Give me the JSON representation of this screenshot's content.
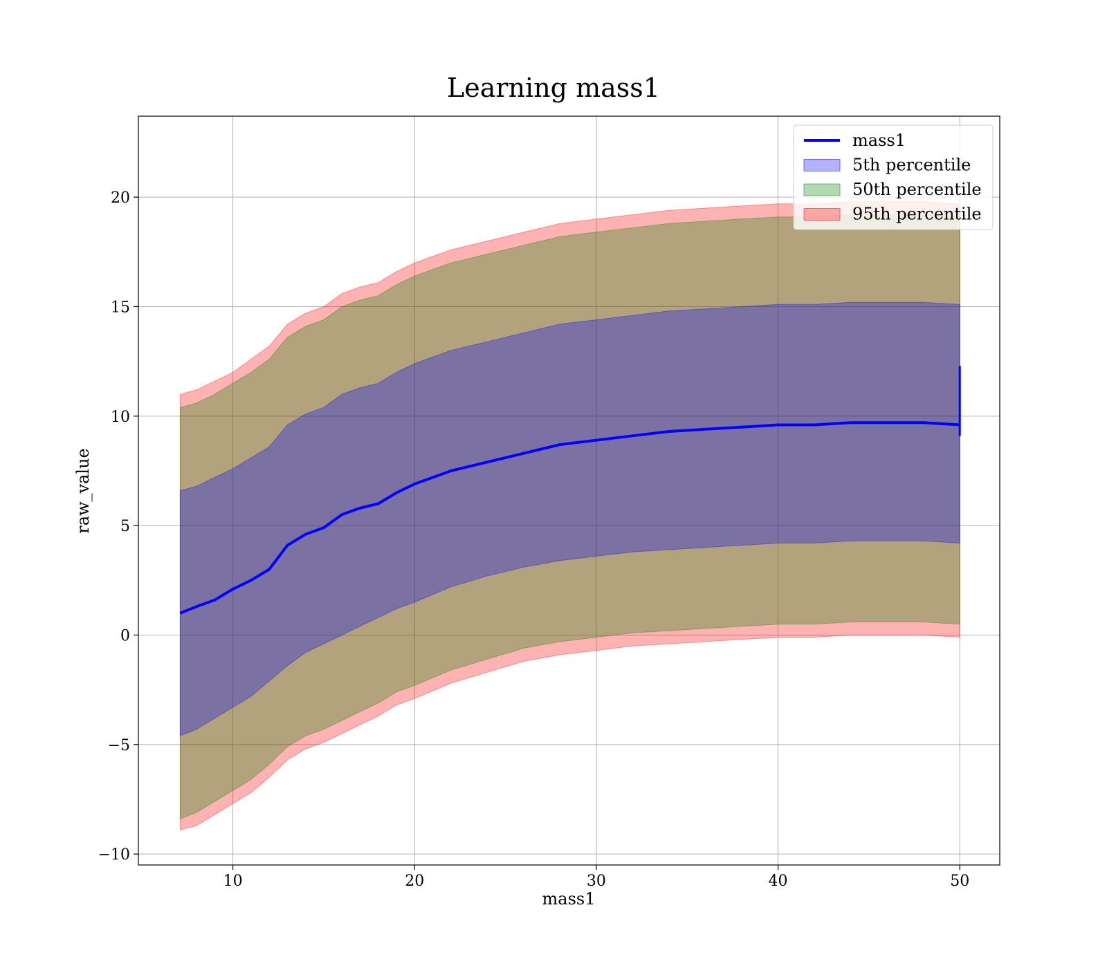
{
  "chart_data": {
    "type": "area",
    "title": "Learning mass1",
    "xlabel": "mass1",
    "ylabel": "raw_value",
    "xlim": [
      4.8,
      52.2
    ],
    "ylim": [
      -10.5,
      23.7
    ],
    "xticks": [
      10,
      20,
      30,
      40,
      50
    ],
    "yticks": [
      -10,
      -5,
      0,
      5,
      10,
      15,
      20
    ],
    "grid": true,
    "legend_position": "top-right",
    "x": [
      7.1,
      8,
      9,
      10,
      11,
      12,
      13,
      14,
      15,
      16,
      17,
      18,
      19,
      20,
      22,
      24,
      26,
      28,
      30,
      32,
      34,
      36,
      38,
      40,
      42,
      44,
      46,
      48,
      50
    ],
    "line": {
      "name": "mass1",
      "color": "#0000ff",
      "values": [
        1.0,
        1.3,
        1.6,
        2.1,
        2.5,
        3.0,
        4.1,
        4.6,
        4.9,
        5.5,
        5.8,
        6.0,
        6.5,
        6.9,
        7.5,
        7.9,
        8.3,
        8.7,
        8.9,
        9.1,
        9.3,
        9.4,
        9.5,
        9.6,
        9.6,
        9.7,
        9.7,
        9.7,
        9.6
      ],
      "end_spike": [
        9.1,
        12.3
      ]
    },
    "series": [
      {
        "name": "5th percentile",
        "color": "#0000ff",
        "opacity": 0.3,
        "lower": [
          -4.6,
          -4.3,
          -3.8,
          -3.3,
          -2.8,
          -2.1,
          -1.4,
          -0.8,
          -0.4,
          0.0,
          0.4,
          0.8,
          1.2,
          1.5,
          2.2,
          2.7,
          3.1,
          3.4,
          3.6,
          3.8,
          3.9,
          4.0,
          4.1,
          4.2,
          4.2,
          4.3,
          4.3,
          4.3,
          4.2
        ],
        "upper": [
          6.6,
          6.8,
          7.2,
          7.6,
          8.1,
          8.6,
          9.6,
          10.1,
          10.4,
          11.0,
          11.3,
          11.5,
          12.0,
          12.4,
          13.0,
          13.4,
          13.8,
          14.2,
          14.4,
          14.6,
          14.8,
          14.9,
          15.0,
          15.1,
          15.1,
          15.2,
          15.2,
          15.2,
          15.1
        ]
      },
      {
        "name": "50th percentile",
        "color": "#008000",
        "opacity": 0.3,
        "lower": [
          -8.4,
          -8.1,
          -7.6,
          -7.1,
          -6.6,
          -5.9,
          -5.1,
          -4.6,
          -4.3,
          -3.9,
          -3.5,
          -3.1,
          -2.6,
          -2.3,
          -1.6,
          -1.1,
          -0.6,
          -0.3,
          -0.1,
          0.1,
          0.2,
          0.3,
          0.4,
          0.5,
          0.5,
          0.6,
          0.6,
          0.6,
          0.5
        ],
        "upper": [
          10.4,
          10.6,
          11.0,
          11.5,
          12.0,
          12.6,
          13.6,
          14.1,
          14.4,
          15.0,
          15.3,
          15.5,
          16.0,
          16.4,
          17.0,
          17.4,
          17.8,
          18.2,
          18.4,
          18.6,
          18.8,
          18.9,
          19.0,
          19.1,
          19.1,
          19.2,
          19.2,
          19.2,
          19.1
        ]
      },
      {
        "name": "95th percentile",
        "color": "#ff0000",
        "opacity": 0.3,
        "lower": [
          -8.9,
          -8.7,
          -8.2,
          -7.7,
          -7.2,
          -6.5,
          -5.7,
          -5.2,
          -4.9,
          -4.5,
          -4.1,
          -3.7,
          -3.2,
          -2.9,
          -2.2,
          -1.7,
          -1.2,
          -0.9,
          -0.7,
          -0.5,
          -0.4,
          -0.3,
          -0.2,
          -0.1,
          -0.1,
          0.0,
          0.0,
          0.0,
          -0.1
        ],
        "upper": [
          11.0,
          11.2,
          11.6,
          12.0,
          12.6,
          13.2,
          14.2,
          14.7,
          15.0,
          15.6,
          15.9,
          16.1,
          16.6,
          17.0,
          17.6,
          18.0,
          18.4,
          18.8,
          19.0,
          19.2,
          19.4,
          19.5,
          19.6,
          19.7,
          19.7,
          19.8,
          19.8,
          19.8,
          19.7
        ]
      }
    ]
  }
}
